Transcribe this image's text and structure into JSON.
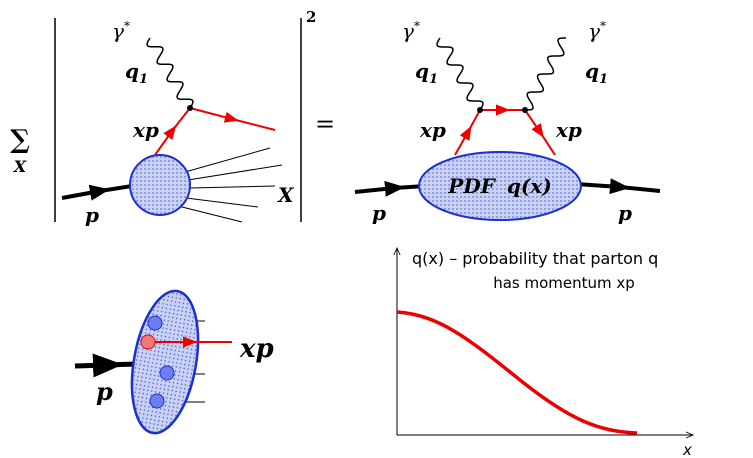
{
  "left_diagram": {
    "sum": {
      "symbol": "∑",
      "index": "X"
    },
    "power": "2",
    "photon": {
      "symbol": "γ",
      "superscript": "*"
    },
    "photon_momentum": {
      "symbol": "q",
      "subscript": "1"
    },
    "parton": "xp",
    "proton": "p",
    "remnants": "X"
  },
  "equals": "=",
  "right_diagram": {
    "photons": [
      {
        "symbol": "γ",
        "superscript": "*"
      },
      {
        "symbol": "γ",
        "superscript": "*"
      }
    ],
    "photon_momenta": [
      {
        "symbol": "q",
        "subscript": "1"
      },
      {
        "symbol": "q",
        "subscript": "1"
      }
    ],
    "partons": [
      "xp",
      "xp"
    ],
    "protons": [
      "p",
      "p"
    ],
    "pdf": {
      "name": "PDF",
      "function": "q(x)"
    }
  },
  "proton_picture": {
    "proton": "p",
    "parton": "xp"
  },
  "plot": {
    "caption": [
      "q(x) – probability that parton q",
      "has momentum xp"
    ],
    "x_axis": "x"
  }
}
